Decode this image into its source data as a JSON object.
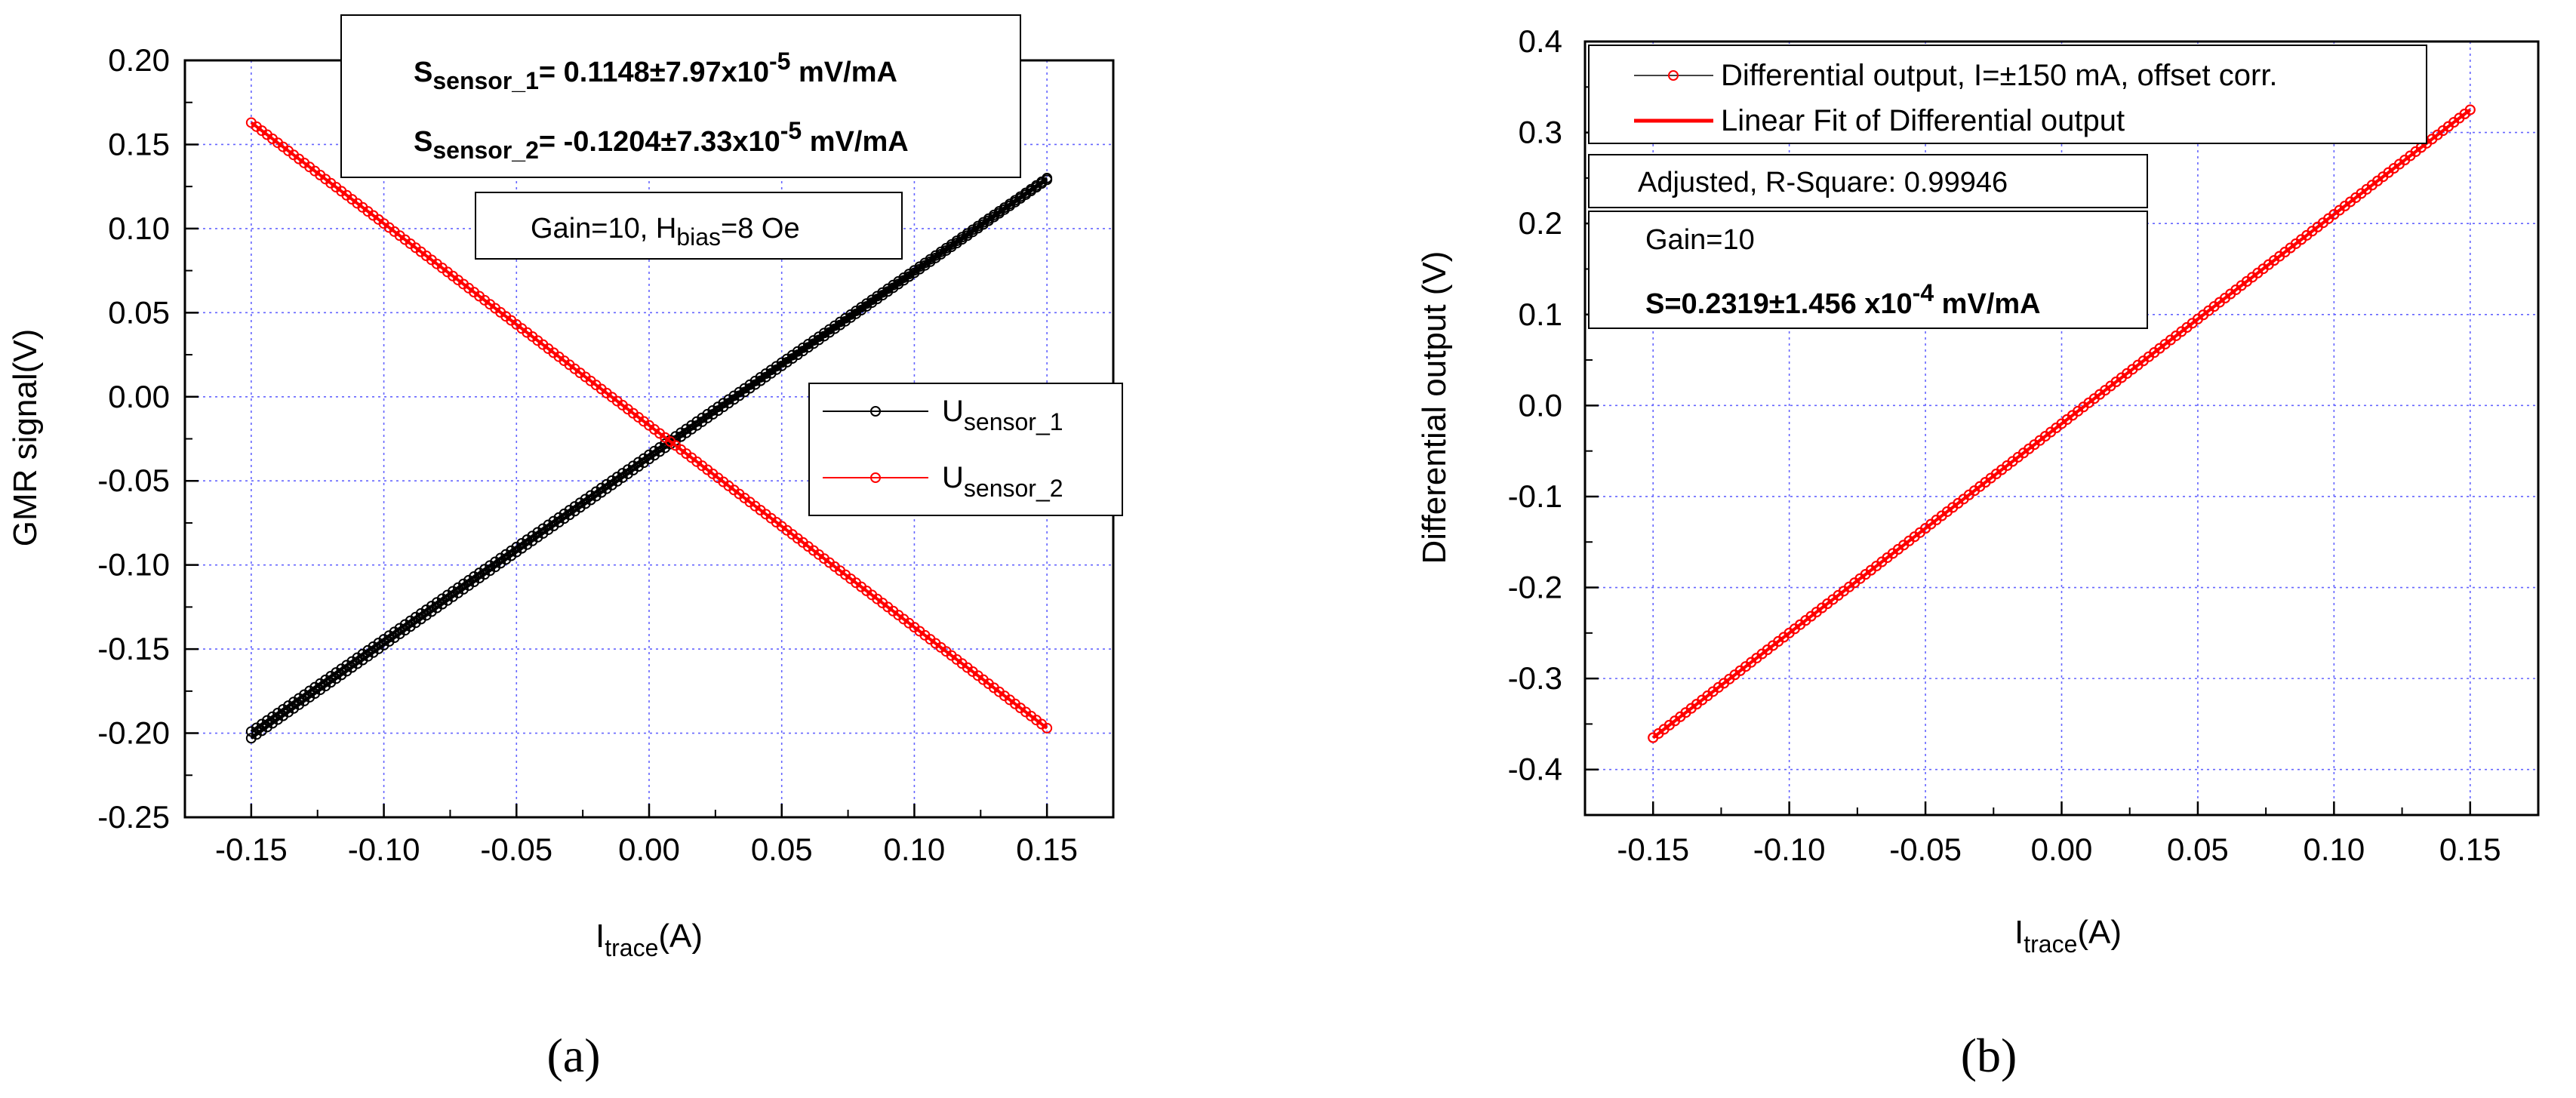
{
  "colors": {
    "black_series": "#000000",
    "red_series": "#ff0000",
    "grid": "#6464ff"
  },
  "panels": [
    {
      "label": "(a)",
      "xlabel_main": "I",
      "xlabel_sub": "trace",
      "xlabel_rest": "(A)",
      "ylabel": "GMR signal(V)",
      "xticks": [
        "-0.15",
        "-0.10",
        "-0.05",
        "0.00",
        "0.05",
        "0.10",
        "0.15"
      ],
      "yticks": [
        "0.20",
        "0.15",
        "0.10",
        "0.05",
        "0.00",
        "-0.05",
        "-0.10",
        "-0.15",
        "-0.20",
        "-0.25"
      ],
      "annot_s1_main": "S",
      "annot_s1_sub": "sensor_1",
      "annot_s1_val": "= 0.1148±7.97x10",
      "annot_s1_exp": "-5",
      "annot_s1_unit": " mV/mA",
      "annot_s2_main": "S",
      "annot_s2_sub": "sensor_2",
      "annot_s2_val": "= -0.1204±7.33x10",
      "annot_s2_exp": "-5",
      "annot_s2_unit": " mV/mA",
      "gain_pre": "Gain=10, H",
      "gain_sub": "bias",
      "gain_post": "=8 Oe",
      "legend": [
        {
          "main": "U",
          "sub": "sensor_1"
        },
        {
          "main": "U",
          "sub": "sensor_2"
        }
      ]
    },
    {
      "label": "(b)",
      "xlabel_main": "I",
      "xlabel_sub": "trace",
      "xlabel_rest": "(A)",
      "ylabel": "Differential output (V)",
      "xticks": [
        "-0.15",
        "-0.10",
        "-0.05",
        "0.00",
        "0.05",
        "0.10",
        "0.15"
      ],
      "yticks": [
        "0.4",
        "0.3",
        "0.2",
        "0.1",
        "0.0",
        "-0.1",
        "-0.2",
        "-0.3",
        "-0.4"
      ],
      "legend": [
        "Differential output, I=±150 mA, offset corr.",
        "Linear Fit of Differential output"
      ],
      "rsquare": "Adjusted, R-Square: 0.99946",
      "gain": "Gain=10",
      "slope_pre": "S=0.2319±1.456 x10",
      "slope_exp": "-4",
      "slope_unit": " mV/mA"
    }
  ],
  "chart_data": [
    {
      "type": "scatter",
      "title": "",
      "xlabel": "I_trace(A)",
      "ylabel": "GMR signal(V)",
      "xlim": [
        -0.175,
        0.175
      ],
      "ylim": [
        -0.25,
        0.2
      ],
      "grid": true,
      "legend_position": "right-center",
      "series": [
        {
          "name": "U_sensor_1",
          "color": "#000000",
          "x": [
            -0.15,
            0.15
          ],
          "y": [
            -0.203,
            0.129
          ],
          "x_fwd": [
            -0.15,
            0.15
          ],
          "y_fwd": [
            -0.199,
            0.13
          ]
        },
        {
          "name": "U_sensor_2",
          "color": "#ff0000",
          "x": [
            -0.15,
            0.15
          ],
          "y": [
            0.163,
            -0.197
          ]
        }
      ]
    },
    {
      "type": "line",
      "title": "",
      "xlabel": "I_trace(A)",
      "ylabel": "Differential output (V)",
      "xlim": [
        -0.175,
        0.175
      ],
      "ylim": [
        -0.45,
        0.4
      ],
      "grid": true,
      "legend_position": "top-left",
      "series": [
        {
          "name": "Differential output, I=±150 mA, offset corr.",
          "color": "#ff0000",
          "x": [
            -0.15,
            0.15
          ],
          "y": [
            -0.365,
            0.325
          ]
        },
        {
          "name": "Linear Fit of Differential output",
          "color": "#ff0000",
          "x": [
            -0.15,
            0.15
          ],
          "y": [
            -0.365,
            0.325
          ]
        }
      ]
    }
  ]
}
